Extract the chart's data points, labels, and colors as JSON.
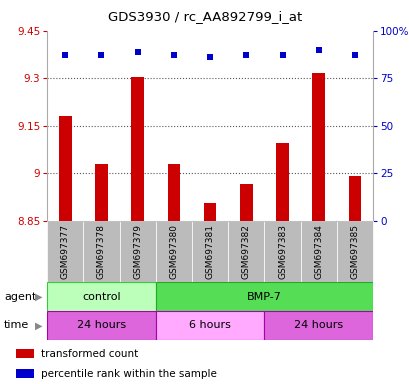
{
  "title": "GDS3930 / rc_AA892799_i_at",
  "samples": [
    "GSM697377",
    "GSM697378",
    "GSM697379",
    "GSM697380",
    "GSM697381",
    "GSM697382",
    "GSM697383",
    "GSM697384",
    "GSM697385"
  ],
  "bar_values": [
    9.18,
    9.03,
    9.305,
    9.03,
    8.905,
    8.965,
    9.095,
    9.315,
    8.99
  ],
  "bar_baseline": 8.85,
  "dot_pct": [
    87,
    87,
    89,
    87,
    86,
    87,
    87,
    90,
    87
  ],
  "bar_color": "#cc0000",
  "dot_color": "#0000cc",
  "ylim_left": [
    8.85,
    9.45
  ],
  "ylim_right": [
    0,
    100
  ],
  "yticks_left": [
    8.85,
    9.0,
    9.15,
    9.3,
    9.45
  ],
  "ytick_labels_left": [
    "8.85",
    "9",
    "9.15",
    "9.3",
    "9.45"
  ],
  "yticks_right": [
    0,
    25,
    50,
    75,
    100
  ],
  "ytick_labels_right": [
    "0",
    "25",
    "50",
    "75",
    "100%"
  ],
  "agent_groups": [
    {
      "label": "control",
      "start": 0,
      "end": 3,
      "color": "#bbffbb",
      "border": "#33cc33"
    },
    {
      "label": "BMP-7",
      "start": 3,
      "end": 9,
      "color": "#55dd55",
      "border": "#22aa22"
    }
  ],
  "time_groups": [
    {
      "label": "24 hours",
      "start": 0,
      "end": 3,
      "color": "#dd66dd",
      "border": "#aa00aa"
    },
    {
      "label": "6 hours",
      "start": 3,
      "end": 6,
      "color": "#ffaaff",
      "border": "#aa00aa"
    },
    {
      "label": "24 hours",
      "start": 6,
      "end": 9,
      "color": "#dd66dd",
      "border": "#aa00aa"
    }
  ],
  "legend_items": [
    {
      "color": "#cc0000",
      "label": "transformed count"
    },
    {
      "color": "#0000cc",
      "label": "percentile rank within the sample"
    }
  ],
  "grid_color": "#555555",
  "bg_color": "#ffffff",
  "plot_bg_color": "#ffffff",
  "xtick_bg_color": "#bbbbbb"
}
